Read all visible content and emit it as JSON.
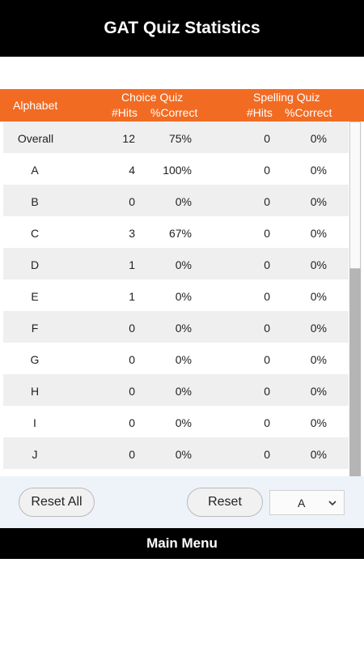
{
  "header": {
    "title": "GAT Quiz Statistics"
  },
  "table": {
    "col_alphabet": "Alphabet",
    "choice_quiz": "Choice Quiz",
    "spelling_quiz": "Spelling Quiz",
    "hits": "#Hits",
    "correct": "%Correct",
    "rows": [
      {
        "label": "Overall",
        "h1": "12",
        "p1": "75%",
        "h2": "0",
        "p2": "0%"
      },
      {
        "label": "A",
        "h1": "4",
        "p1": "100%",
        "h2": "0",
        "p2": "0%"
      },
      {
        "label": "B",
        "h1": "0",
        "p1": "0%",
        "h2": "0",
        "p2": "0%"
      },
      {
        "label": "C",
        "h1": "3",
        "p1": "67%",
        "h2": "0",
        "p2": "0%"
      },
      {
        "label": "D",
        "h1": "1",
        "p1": "0%",
        "h2": "0",
        "p2": "0%"
      },
      {
        "label": "E",
        "h1": "1",
        "p1": "0%",
        "h2": "0",
        "p2": "0%"
      },
      {
        "label": "F",
        "h1": "0",
        "p1": "0%",
        "h2": "0",
        "p2": "0%"
      },
      {
        "label": "G",
        "h1": "0",
        "p1": "0%",
        "h2": "0",
        "p2": "0%"
      },
      {
        "label": "H",
        "h1": "0",
        "p1": "0%",
        "h2": "0",
        "p2": "0%"
      },
      {
        "label": "I",
        "h1": "0",
        "p1": "0%",
        "h2": "0",
        "p2": "0%"
      },
      {
        "label": "J",
        "h1": "0",
        "p1": "0%",
        "h2": "0",
        "p2": "0%"
      }
    ]
  },
  "controls": {
    "reset_all_label": "Reset All",
    "reset_label": "Reset",
    "letter_select_value": "A"
  },
  "footer": {
    "main_menu_label": "Main Menu"
  },
  "colors": {
    "accent": "#f26b22",
    "bar": "#000000"
  }
}
